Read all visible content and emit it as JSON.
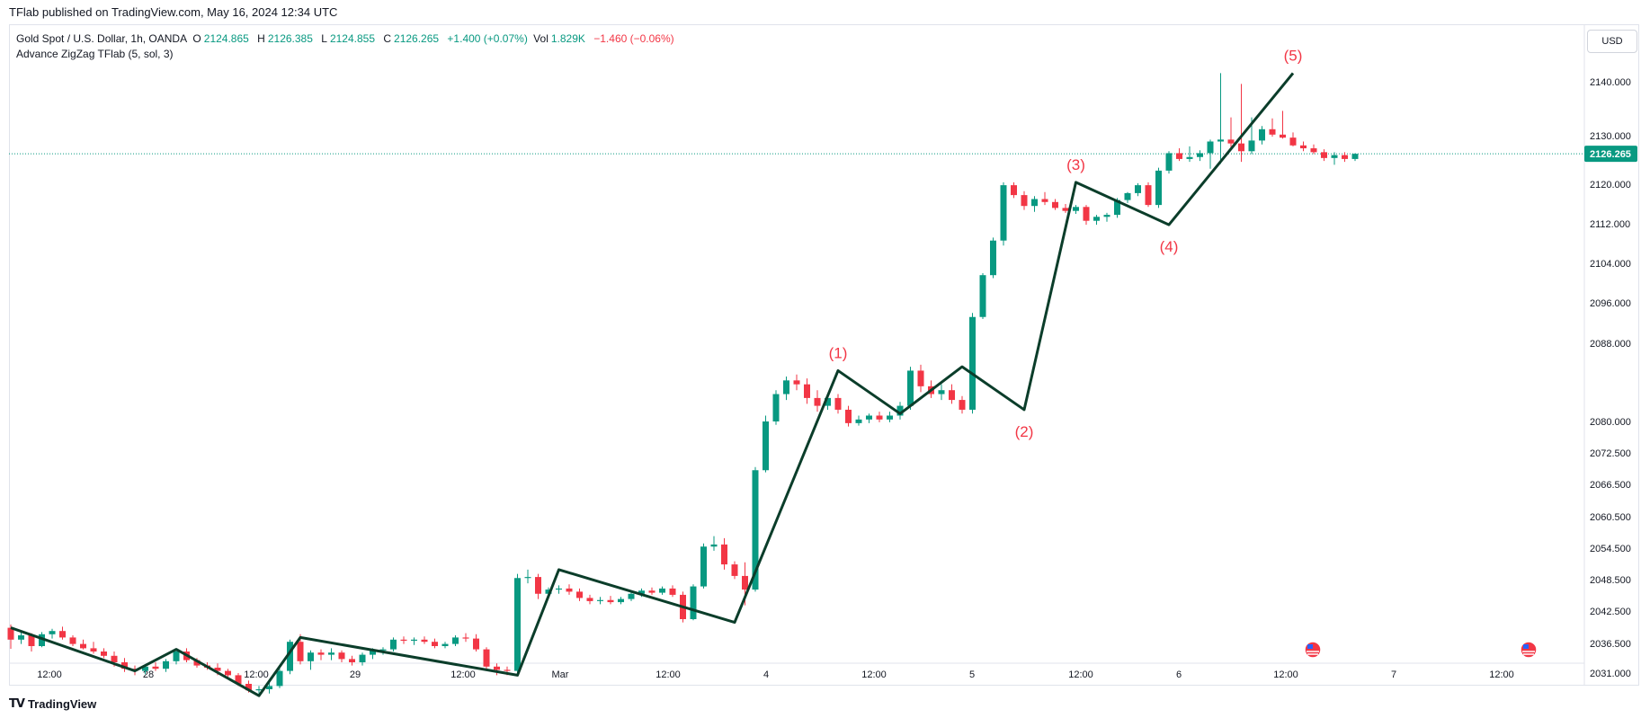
{
  "header": {
    "published_line": "TFlab published on TradingView.com, May 16, 2024 12:34 UTC"
  },
  "legend": {
    "symbol": "Gold Spot / U.S. Dollar, 1h, OANDA",
    "o_label": "O",
    "o_value": "2124.865",
    "h_label": "H",
    "h_value": "2126.385",
    "l_label": "L",
    "l_value": "2124.855",
    "c_label": "C",
    "c_value": "2126.265",
    "change": "+1.400 (+0.07%)",
    "vol_label": "Vol",
    "vol_value": "1.829K",
    "vol_change": "−1.460 (−0.06%)",
    "indicator": "Advance ZigZag TFlab (5, sol, 3)"
  },
  "currency": "USD",
  "footer": {
    "logo_text": "TradingView"
  },
  "colors": {
    "up": "#089981",
    "down": "#f23645",
    "zigzag": "#0b3d2a",
    "wave_label": "#f23645"
  },
  "chart_data": {
    "type": "candlestick",
    "title": "Gold Spot / U.S. Dollar, 1h, OANDA",
    "current_price": 2126.265,
    "current_price_label": "2126.265",
    "y_tick_labels": [
      "2140.000",
      "2130.000",
      "2120.000",
      "2112.000",
      "2104.000",
      "2096.000",
      "2088.000",
      "2080.000",
      "2072.500",
      "2066.500",
      "2060.500",
      "2054.500",
      "2048.500",
      "2042.500",
      "2036.500",
      "2031.000"
    ],
    "x_tick_labels": [
      "12:00",
      "28",
      "12:00",
      "29",
      "12:00",
      "Mar",
      "12:00",
      "4",
      "12:00",
      "5",
      "12:00",
      "6",
      "12:00",
      "7",
      "12:00"
    ],
    "candles": [
      [
        2039.4,
        2040.0,
        2035.5,
        2037.2
      ],
      [
        2037.2,
        2038.6,
        2036.4,
        2038.0
      ],
      [
        2038.0,
        2038.4,
        2035.0,
        2036.0
      ],
      [
        2036.0,
        2038.6,
        2035.8,
        2038.2
      ],
      [
        2038.2,
        2039.2,
        2037.4,
        2038.8
      ],
      [
        2038.8,
        2039.6,
        2037.2,
        2037.6
      ],
      [
        2037.6,
        2038.0,
        2036.0,
        2036.4
      ],
      [
        2036.4,
        2037.2,
        2035.4,
        2035.6
      ],
      [
        2035.6,
        2036.8,
        2034.6,
        2035.0
      ],
      [
        2035.0,
        2035.6,
        2033.8,
        2034.2
      ],
      [
        2034.2,
        2035.0,
        2032.2,
        2033.0
      ],
      [
        2033.0,
        2033.8,
        2031.2,
        2031.8
      ],
      [
        2031.8,
        2032.4,
        2030.6,
        2031.4
      ],
      [
        2031.4,
        2032.6,
        2030.8,
        2032.2
      ],
      [
        2032.2,
        2033.0,
        2031.4,
        2031.8
      ],
      [
        2031.8,
        2033.6,
        2031.2,
        2033.2
      ],
      [
        2033.2,
        2035.4,
        2032.6,
        2035.0
      ],
      [
        2035.0,
        2035.6,
        2033.0,
        2033.4
      ],
      [
        2033.4,
        2033.8,
        2032.0,
        2032.4
      ],
      [
        2032.4,
        2033.0,
        2031.6,
        2032.0
      ],
      [
        2032.0,
        2032.8,
        2030.6,
        2031.4
      ],
      [
        2031.4,
        2031.8,
        2030.0,
        2030.6
      ],
      [
        2030.6,
        2031.0,
        2028.6,
        2029.0
      ],
      [
        2029.0,
        2029.6,
        2027.4,
        2027.8
      ],
      [
        2027.8,
        2028.6,
        2026.8,
        2028.0
      ],
      [
        2028.0,
        2029.2,
        2027.2,
        2028.6
      ],
      [
        2028.6,
        2031.8,
        2028.2,
        2031.4
      ],
      [
        2031.4,
        2037.2,
        2030.8,
        2036.8
      ],
      [
        2036.8,
        2038.2,
        2032.6,
        2033.2
      ],
      [
        2033.2,
        2035.2,
        2031.6,
        2034.8
      ],
      [
        2034.8,
        2035.4,
        2033.4,
        2034.4
      ],
      [
        2034.4,
        2035.6,
        2033.4,
        2034.8
      ],
      [
        2034.8,
        2035.2,
        2033.0,
        2033.6
      ],
      [
        2033.6,
        2034.2,
        2032.4,
        2033.0
      ],
      [
        2033.0,
        2034.8,
        2032.4,
        2034.4
      ],
      [
        2034.4,
        2035.6,
        2033.6,
        2035.2
      ],
      [
        2035.2,
        2035.8,
        2034.4,
        2035.4
      ],
      [
        2035.4,
        2037.6,
        2035.0,
        2037.2
      ],
      [
        2037.2,
        2037.8,
        2036.4,
        2037.0
      ],
      [
        2037.0,
        2037.6,
        2036.2,
        2037.2
      ],
      [
        2037.2,
        2037.8,
        2036.4,
        2036.8
      ],
      [
        2036.8,
        2037.4,
        2035.6,
        2036.0
      ],
      [
        2036.0,
        2036.8,
        2035.6,
        2036.4
      ],
      [
        2036.4,
        2038.0,
        2036.0,
        2037.6
      ],
      [
        2037.6,
        2038.4,
        2036.8,
        2037.4
      ],
      [
        2037.4,
        2038.2,
        2035.0,
        2035.4
      ],
      [
        2035.4,
        2035.8,
        2031.8,
        2032.2
      ],
      [
        2032.2,
        2032.8,
        2030.6,
        2031.6
      ],
      [
        2031.6,
        2032.2,
        2030.6,
        2031.4
      ],
      [
        2031.4,
        2049.6,
        2031.0,
        2048.8
      ],
      [
        2048.8,
        2050.4,
        2047.8,
        2049.0
      ],
      [
        2049.0,
        2049.6,
        2044.8,
        2045.8
      ],
      [
        2045.8,
        2047.0,
        2045.0,
        2046.6
      ],
      [
        2046.6,
        2047.4,
        2045.8,
        2046.8
      ],
      [
        2046.8,
        2047.6,
        2045.6,
        2046.2
      ],
      [
        2046.2,
        2046.8,
        2044.4,
        2045.0
      ],
      [
        2045.0,
        2045.6,
        2043.8,
        2044.4
      ],
      [
        2044.4,
        2045.2,
        2043.8,
        2044.6
      ],
      [
        2044.6,
        2045.4,
        2043.8,
        2044.2
      ],
      [
        2044.2,
        2045.2,
        2043.8,
        2044.8
      ],
      [
        2044.8,
        2046.2,
        2044.4,
        2045.8
      ],
      [
        2045.8,
        2046.8,
        2045.2,
        2046.4
      ],
      [
        2046.4,
        2047.0,
        2045.6,
        2046.0
      ],
      [
        2046.0,
        2047.2,
        2045.6,
        2046.8
      ],
      [
        2046.8,
        2047.4,
        2045.2,
        2045.6
      ],
      [
        2045.6,
        2046.2,
        2040.4,
        2041.0
      ],
      [
        2041.0,
        2047.6,
        2040.8,
        2047.2
      ],
      [
        2047.2,
        2055.4,
        2046.8,
        2054.8
      ],
      [
        2054.8,
        2056.8,
        2054.0,
        2055.2
      ],
      [
        2055.2,
        2056.4,
        2050.4,
        2051.4
      ],
      [
        2051.4,
        2052.0,
        2048.6,
        2049.2
      ],
      [
        2049.2,
        2051.8,
        2043.6,
        2046.6
      ],
      [
        2046.6,
        2069.8,
        2046.2,
        2069.2
      ],
      [
        2069.2,
        2080.6,
        2068.8,
        2080.0
      ],
      [
        2080.0,
        2083.2,
        2079.2,
        2082.8
      ],
      [
        2082.8,
        2084.6,
        2082.2,
        2084.2
      ],
      [
        2084.2,
        2084.8,
        2083.2,
        2083.8
      ],
      [
        2083.8,
        2084.4,
        2081.8,
        2082.4
      ],
      [
        2082.4,
        2083.2,
        2081.0,
        2081.6
      ],
      [
        2081.6,
        2082.8,
        2081.2,
        2082.4
      ],
      [
        2082.4,
        2082.8,
        2080.8,
        2081.2
      ],
      [
        2081.2,
        2081.6,
        2078.8,
        2079.6
      ],
      [
        2079.6,
        2080.6,
        2079.0,
        2080.2
      ],
      [
        2080.2,
        2080.8,
        2079.6,
        2080.6
      ],
      [
        2080.6,
        2081.0,
        2079.8,
        2080.2
      ],
      [
        2080.2,
        2081.0,
        2079.8,
        2080.6
      ],
      [
        2080.6,
        2082.0,
        2080.2,
        2081.6
      ],
      [
        2081.6,
        2085.6,
        2081.2,
        2085.2
      ],
      [
        2085.2,
        2085.8,
        2083.0,
        2083.6
      ],
      [
        2083.6,
        2084.2,
        2082.4,
        2082.8
      ],
      [
        2082.8,
        2083.8,
        2082.2,
        2083.2
      ],
      [
        2083.2,
        2083.8,
        2081.8,
        2082.2
      ],
      [
        2082.2,
        2082.6,
        2080.8,
        2081.2
      ],
      [
        2081.2,
        2094.0,
        2080.8,
        2093.2
      ],
      [
        2093.2,
        2102.0,
        2092.8,
        2101.6
      ],
      [
        2101.6,
        2109.2,
        2101.0,
        2108.6
      ],
      [
        2108.6,
        2120.4,
        2107.6,
        2119.8
      ],
      [
        2119.8,
        2120.4,
        2117.2,
        2117.8
      ],
      [
        2117.8,
        2118.6,
        2114.8,
        2115.6
      ],
      [
        2115.6,
        2117.6,
        2114.4,
        2117.0
      ],
      [
        2117.0,
        2118.4,
        2115.8,
        2116.4
      ],
      [
        2116.4,
        2117.0,
        2114.8,
        2115.2
      ],
      [
        2115.2,
        2116.0,
        2114.2,
        2114.6
      ],
      [
        2114.6,
        2115.8,
        2114.0,
        2115.4
      ],
      [
        2115.4,
        2115.8,
        2111.8,
        2112.6
      ],
      [
        2112.6,
        2113.8,
        2111.8,
        2113.4
      ],
      [
        2113.4,
        2114.2,
        2112.4,
        2113.8
      ],
      [
        2113.8,
        2117.2,
        2113.2,
        2116.8
      ],
      [
        2116.8,
        2118.4,
        2116.2,
        2118.2
      ],
      [
        2118.2,
        2120.2,
        2117.6,
        2119.8
      ],
      [
        2119.8,
        2120.4,
        2115.4,
        2115.8
      ],
      [
        2115.8,
        2123.4,
        2115.2,
        2122.8
      ],
      [
        2122.8,
        2126.8,
        2122.2,
        2126.4
      ],
      [
        2126.4,
        2127.4,
        2124.8,
        2125.2
      ],
      [
        2125.2,
        2127.8,
        2124.6,
        2125.6
      ],
      [
        2125.6,
        2127.0,
        2124.8,
        2126.4
      ],
      [
        2126.4,
        2129.2,
        2123.2,
        2128.8
      ],
      [
        2128.8,
        2141.6,
        2124.2,
        2129.2
      ],
      [
        2129.2,
        2133.4,
        2127.4,
        2128.4
      ],
      [
        2128.4,
        2139.6,
        2124.6,
        2126.8
      ],
      [
        2126.8,
        2133.4,
        2126.2,
        2129.0
      ],
      [
        2129.0,
        2131.8,
        2128.2,
        2131.2
      ],
      [
        2131.2,
        2133.2,
        2129.8,
        2130.2
      ],
      [
        2130.2,
        2134.6,
        2129.4,
        2129.6
      ],
      [
        2129.6,
        2130.6,
        2127.8,
        2128.0
      ],
      [
        2128.0,
        2128.8,
        2126.8,
        2127.4
      ],
      [
        2127.4,
        2128.2,
        2126.2,
        2126.6
      ],
      [
        2126.6,
        2127.2,
        2124.8,
        2125.4
      ],
      [
        2125.4,
        2126.6,
        2124.0,
        2126.0
      ],
      [
        2126.0,
        2126.6,
        2124.6,
        2125.2
      ],
      [
        2125.2,
        2126.4,
        2124.8,
        2126.265
      ]
    ],
    "zigzag": [
      [
        0,
        2039.4
      ],
      [
        12,
        2031.4
      ],
      [
        16,
        2035.4
      ],
      [
        24,
        2026.8
      ],
      [
        28,
        2037.6
      ],
      [
        49,
        2030.6
      ],
      [
        53,
        2050.4
      ],
      [
        70,
        2040.4
      ],
      [
        80,
        2085.2
      ],
      [
        86,
        2080.8
      ],
      [
        92,
        2085.6
      ],
      [
        98,
        2081.2
      ],
      [
        103,
        2120.4
      ],
      [
        112,
        2111.8
      ],
      [
        124,
        2141.6
      ]
    ],
    "wave_labels": [
      {
        "text": "(1)",
        "at": 80,
        "pos": "above"
      },
      {
        "text": "(2)",
        "at": 98,
        "pos": "below"
      },
      {
        "text": "(3)",
        "at": 103,
        "pos": "above"
      },
      {
        "text": "(4)",
        "at": 112,
        "pos": "below"
      },
      {
        "text": "(5)",
        "at": 124,
        "pos": "above"
      }
    ]
  }
}
